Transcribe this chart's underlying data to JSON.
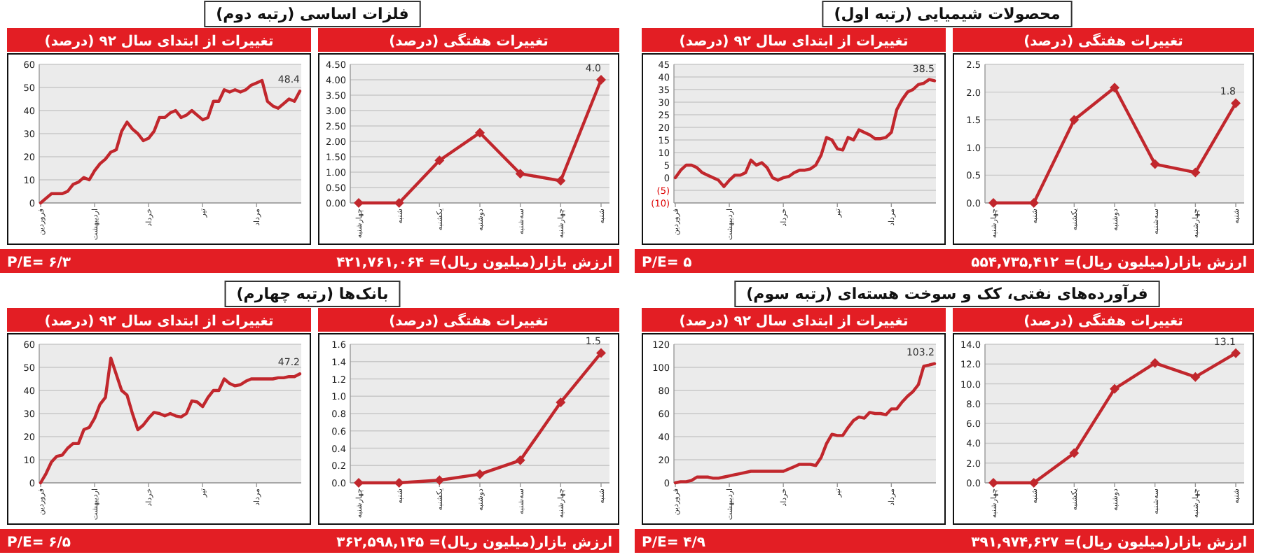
{
  "chart_data": [
    {
      "type": "line",
      "title": "تغییرات هفتگی (درصد)",
      "categories": [
        "چهارشنبه",
        "شنبه",
        "یکشنبه",
        "دوشنبه",
        "سه‌شنبه",
        "چهارشنبه",
        "شنبه"
      ],
      "series": [
        {
          "color": "#c1272d",
          "values": [
            0,
            0,
            1.5,
            2.08,
            0.7,
            0.55,
            1.8
          ],
          "value_labels": [
            null,
            null,
            null,
            null,
            null,
            null,
            "1.8"
          ]
        }
      ],
      "ylim": [
        0,
        2.5
      ],
      "yticks": [
        {
          "value": 0,
          "label": "0.0"
        },
        {
          "value": 0.5,
          "label": "0.5"
        },
        {
          "value": 1,
          "label": "1.0"
        },
        {
          "value": 1.5,
          "label": "1.5"
        },
        {
          "value": 2,
          "label": "2.0"
        },
        {
          "value": 2.5,
          "label": "2.5"
        }
      ],
      "grid": "y",
      "marker": "diamond",
      "annotations": [
        "محصولات شیمیایی (رتبه اول)",
        "ارزش بازار(میلیون ریال)= ۵۵۴,۷۳۵,۴۱۲",
        "P/E= ۵"
      ]
    },
    {
      "type": "line",
      "title": "تغییرات از ابتدای سال ۹۲ (درصد)",
      "categories": [
        "فروردین",
        null,
        null,
        null,
        null,
        null,
        null,
        null,
        null,
        null,
        "اردیبهشت",
        null,
        null,
        null,
        null,
        null,
        null,
        null,
        null,
        null,
        "خرداد",
        null,
        null,
        null,
        null,
        null,
        null,
        null,
        null,
        null,
        "تیر",
        null,
        null,
        null,
        null,
        null,
        null,
        null,
        null,
        null,
        "مرداد",
        null,
        null,
        null,
        null,
        null,
        null,
        null,
        null
      ],
      "series": [
        {
          "color": "#c1272d",
          "values": [
            0,
            3,
            5,
            5,
            4,
            2,
            1,
            0,
            -1,
            -3.5,
            -1,
            1,
            1,
            2,
            7,
            5,
            6,
            4,
            0,
            -1,
            0,
            0.5,
            2,
            3,
            3,
            3.5,
            5,
            9,
            16,
            15,
            11.5,
            11,
            16,
            15,
            19,
            18,
            17,
            15.5,
            15.5,
            16,
            18,
            27,
            31,
            34,
            35,
            37,
            37.5,
            39,
            38.5
          ],
          "value_labels": [
            null,
            null,
            null,
            null,
            null,
            null,
            null,
            null,
            null,
            null,
            null,
            null,
            null,
            null,
            null,
            null,
            null,
            null,
            null,
            null,
            null,
            null,
            null,
            null,
            null,
            null,
            null,
            null,
            null,
            null,
            null,
            null,
            null,
            null,
            null,
            null,
            null,
            null,
            null,
            null,
            null,
            null,
            null,
            null,
            null,
            null,
            null,
            null,
            "38.5"
          ]
        }
      ],
      "ylim": [
        -10,
        45
      ],
      "yticks": [
        {
          "value": -10,
          "label": "(10)"
        },
        {
          "value": -5,
          "label": "(5)"
        },
        0,
        5,
        10,
        15,
        20,
        25,
        30,
        35,
        40,
        45
      ],
      "grid": "y",
      "marker": "none"
    },
    {
      "type": "line",
      "title": "تغییرات هفتگی (درصد)",
      "categories": [
        "چهارشنبه",
        "شنبه",
        "یکشنبه",
        "دوشنبه",
        "سه‌شنبه",
        "چهارشنبه",
        "شنبه"
      ],
      "series": [
        {
          "color": "#c1272d",
          "values": [
            0,
            0,
            1.38,
            2.28,
            0.95,
            0.72,
            4.0
          ],
          "value_labels": [
            null,
            null,
            null,
            null,
            null,
            null,
            "4.0"
          ]
        }
      ],
      "ylim": [
        0,
        4.5
      ],
      "yticks": [
        {
          "value": 0,
          "label": "0.00"
        },
        {
          "value": 0.5,
          "label": "0.50"
        },
        {
          "value": 1,
          "label": "1.00"
        },
        {
          "value": 1.5,
          "label": "1.50"
        },
        {
          "value": 2,
          "label": "2.00"
        },
        {
          "value": 2.5,
          "label": "2.50"
        },
        {
          "value": 3,
          "label": "3.00"
        },
        {
          "value": 3.5,
          "label": "3.50"
        },
        {
          "value": 4,
          "label": "4.00"
        },
        {
          "value": 4.5,
          "label": "4.50"
        }
      ],
      "grid": "y",
      "marker": "diamond",
      "annotations": [
        "فلزات اساسی (رتبه دوم)",
        "ارزش بازار(میلیون ریال)= ۴۲۱,۷۶۱,۰۶۴",
        "P/E= ۶/۳"
      ]
    },
    {
      "type": "line",
      "title": "تغییرات از ابتدای سال ۹۲ (درصد)",
      "categories": [
        "فروردین",
        null,
        null,
        null,
        null,
        null,
        null,
        null,
        null,
        null,
        "اردیبهشت",
        null,
        null,
        null,
        null,
        null,
        null,
        null,
        null,
        null,
        "خرداد",
        null,
        null,
        null,
        null,
        null,
        null,
        null,
        null,
        null,
        "تیر",
        null,
        null,
        null,
        null,
        null,
        null,
        null,
        null,
        null,
        "مرداد",
        null,
        null,
        null,
        null,
        null,
        null,
        null,
        null
      ],
      "series": [
        {
          "color": "#c1272d",
          "values": [
            0,
            2,
            4,
            4,
            4,
            5,
            8,
            9,
            11,
            10,
            14,
            17,
            19,
            22,
            23,
            31,
            35,
            32,
            30,
            27,
            28,
            31,
            37,
            37,
            39,
            40,
            37,
            38,
            40,
            38,
            36,
            37,
            44,
            44,
            49,
            48,
            49,
            48,
            49,
            51,
            52,
            53,
            44,
            42,
            41,
            43,
            45,
            44,
            48.4
          ],
          "value_labels": [
            null,
            null,
            null,
            null,
            null,
            null,
            null,
            null,
            null,
            null,
            null,
            null,
            null,
            null,
            null,
            null,
            null,
            null,
            null,
            null,
            null,
            null,
            null,
            null,
            null,
            null,
            null,
            null,
            null,
            null,
            null,
            null,
            null,
            null,
            null,
            null,
            null,
            null,
            null,
            null,
            null,
            null,
            null,
            null,
            null,
            null,
            null,
            null,
            "48.4"
          ]
        }
      ],
      "ylim": [
        0,
        60
      ],
      "yticks": [
        0,
        10,
        20,
        30,
        40,
        50,
        60
      ],
      "grid": "y",
      "marker": "none"
    },
    {
      "type": "line",
      "title": "تغییرات هفتگی (درصد)",
      "categories": [
        "چهارشنبه",
        "شنبه",
        "یکشنبه",
        "دوشنبه",
        "سه‌شنبه",
        "چهارشنبه",
        "شنبه"
      ],
      "series": [
        {
          "color": "#c1272d",
          "values": [
            0,
            0,
            3.0,
            9.5,
            12.1,
            10.7,
            13.1
          ],
          "value_labels": [
            null,
            null,
            null,
            null,
            null,
            null,
            "13.1"
          ]
        }
      ],
      "ylim": [
        0,
        14
      ],
      "yticks": [
        {
          "value": 0,
          "label": "0.0"
        },
        {
          "value": 2,
          "label": "2.0"
        },
        {
          "value": 4,
          "label": "4.0"
        },
        {
          "value": 6,
          "label": "6.0"
        },
        {
          "value": 8,
          "label": "8.0"
        },
        {
          "value": 10,
          "label": "10.0"
        },
        {
          "value": 12,
          "label": "12.0"
        },
        {
          "value": 14,
          "label": "14.0"
        }
      ],
      "grid": "y",
      "marker": "diamond",
      "annotations": [
        "فرآورده‌های نفتی، کک و سوخت هسته‌ای (رتبه سوم)",
        "ارزش بازار(میلیون ریال)= ۳۹۱,۹۷۴,۶۲۷",
        "P/E= ۴/۹"
      ]
    },
    {
      "type": "line",
      "title": "تغییرات از ابتدای سال ۹۲ (درصد)",
      "categories": [
        "فروردین",
        null,
        null,
        null,
        null,
        null,
        null,
        null,
        null,
        null,
        "اردیبهشت",
        null,
        null,
        null,
        null,
        null,
        null,
        null,
        null,
        null,
        "خرداد",
        null,
        null,
        null,
        null,
        null,
        null,
        null,
        null,
        null,
        "تیر",
        null,
        null,
        null,
        null,
        null,
        null,
        null,
        null,
        null,
        "مرداد",
        null,
        null,
        null,
        null,
        null,
        null,
        null,
        null
      ],
      "series": [
        {
          "color": "#c1272d",
          "values": [
            0,
            1,
            1,
            2,
            5,
            5,
            5,
            4,
            4,
            5,
            6,
            7,
            8,
            9,
            10,
            10,
            10,
            10,
            10,
            10,
            10,
            12,
            14,
            16,
            16,
            16,
            15,
            22,
            34,
            42,
            41,
            41,
            48,
            54,
            57,
            56,
            61,
            60,
            60,
            59,
            64,
            64,
            70,
            75,
            79,
            85,
            101,
            102,
            103.2
          ],
          "value_labels": [
            null,
            null,
            null,
            null,
            null,
            null,
            null,
            null,
            null,
            null,
            null,
            null,
            null,
            null,
            null,
            null,
            null,
            null,
            null,
            null,
            null,
            null,
            null,
            null,
            null,
            null,
            null,
            null,
            null,
            null,
            null,
            null,
            null,
            null,
            null,
            null,
            null,
            null,
            null,
            null,
            null,
            null,
            null,
            null,
            null,
            null,
            null,
            null,
            "103.2"
          ]
        }
      ],
      "ylim": [
        0,
        120
      ],
      "yticks": [
        0,
        20,
        40,
        60,
        80,
        100,
        120
      ],
      "grid": "y",
      "marker": "none"
    },
    {
      "type": "line",
      "title": "تغییرات هفتگی (درصد)",
      "categories": [
        "چهارشنبه",
        "شنبه",
        "یکشنبه",
        "دوشنبه",
        "سه‌شنبه",
        "چهارشنبه",
        "شنبه"
      ],
      "series": [
        {
          "color": "#c1272d",
          "values": [
            0,
            0,
            0.03,
            0.1,
            0.26,
            0.93,
            1.5
          ],
          "value_labels": [
            null,
            null,
            null,
            null,
            null,
            null,
            "1.5"
          ]
        }
      ],
      "ylim": [
        0,
        1.6
      ],
      "yticks": [
        {
          "value": 0,
          "label": "0.0"
        },
        {
          "value": 0.2,
          "label": "0.2"
        },
        {
          "value": 0.4,
          "label": "0.4"
        },
        {
          "value": 0.6,
          "label": "0.6"
        },
        {
          "value": 0.8,
          "label": "0.8"
        },
        {
          "value": 1,
          "label": "1.0"
        },
        {
          "value": 1.2,
          "label": "1.2"
        },
        {
          "value": 1.4,
          "label": "1.4"
        },
        {
          "value": 1.6,
          "label": "1.6"
        }
      ],
      "grid": "y",
      "marker": "diamond",
      "annotations": [
        "بانک‌ها (رتبه چهارم)",
        "ارزش بازار(میلیون ریال)= ۳۶۲,۵۹۸,۱۴۵",
        "P/E= ۶/۵"
      ]
    },
    {
      "type": "line",
      "title": "تغییرات از ابتدای سال ۹۲ (درصد)",
      "categories": [
        "فروردین",
        null,
        null,
        null,
        null,
        null,
        null,
        null,
        null,
        null,
        "اردیبهشت",
        null,
        null,
        null,
        null,
        null,
        null,
        null,
        null,
        null,
        "خرداد",
        null,
        null,
        null,
        null,
        null,
        null,
        null,
        null,
        null,
        "تیر",
        null,
        null,
        null,
        null,
        null,
        null,
        null,
        null,
        null,
        "مرداد",
        null,
        null,
        null,
        null,
        null,
        null,
        null,
        null
      ],
      "series": [
        {
          "color": "#c1272d",
          "values": [
            0,
            4,
            9,
            11.5,
            12,
            15,
            17,
            17,
            23,
            24,
            28,
            34,
            37,
            54,
            47,
            40,
            38,
            30,
            23,
            25,
            28,
            30.5,
            30,
            29,
            30,
            29,
            28.5,
            30,
            35.5,
            35,
            33,
            37,
            40,
            40,
            45,
            43,
            42,
            42.5,
            44,
            45,
            45,
            45,
            45,
            45,
            45.5,
            45.5,
            46,
            46,
            47.2
          ],
          "value_labels": [
            null,
            null,
            null,
            null,
            null,
            null,
            null,
            null,
            null,
            null,
            null,
            null,
            null,
            null,
            null,
            null,
            null,
            null,
            null,
            null,
            null,
            null,
            null,
            null,
            null,
            null,
            null,
            null,
            null,
            null,
            null,
            null,
            null,
            null,
            null,
            null,
            null,
            null,
            null,
            null,
            null,
            null,
            null,
            null,
            null,
            null,
            null,
            null,
            "47.2"
          ]
        }
      ],
      "ylim": [
        0,
        60
      ],
      "yticks": [
        0,
        10,
        20,
        30,
        40,
        50,
        60
      ],
      "grid": "y",
      "marker": "none"
    }
  ]
}
